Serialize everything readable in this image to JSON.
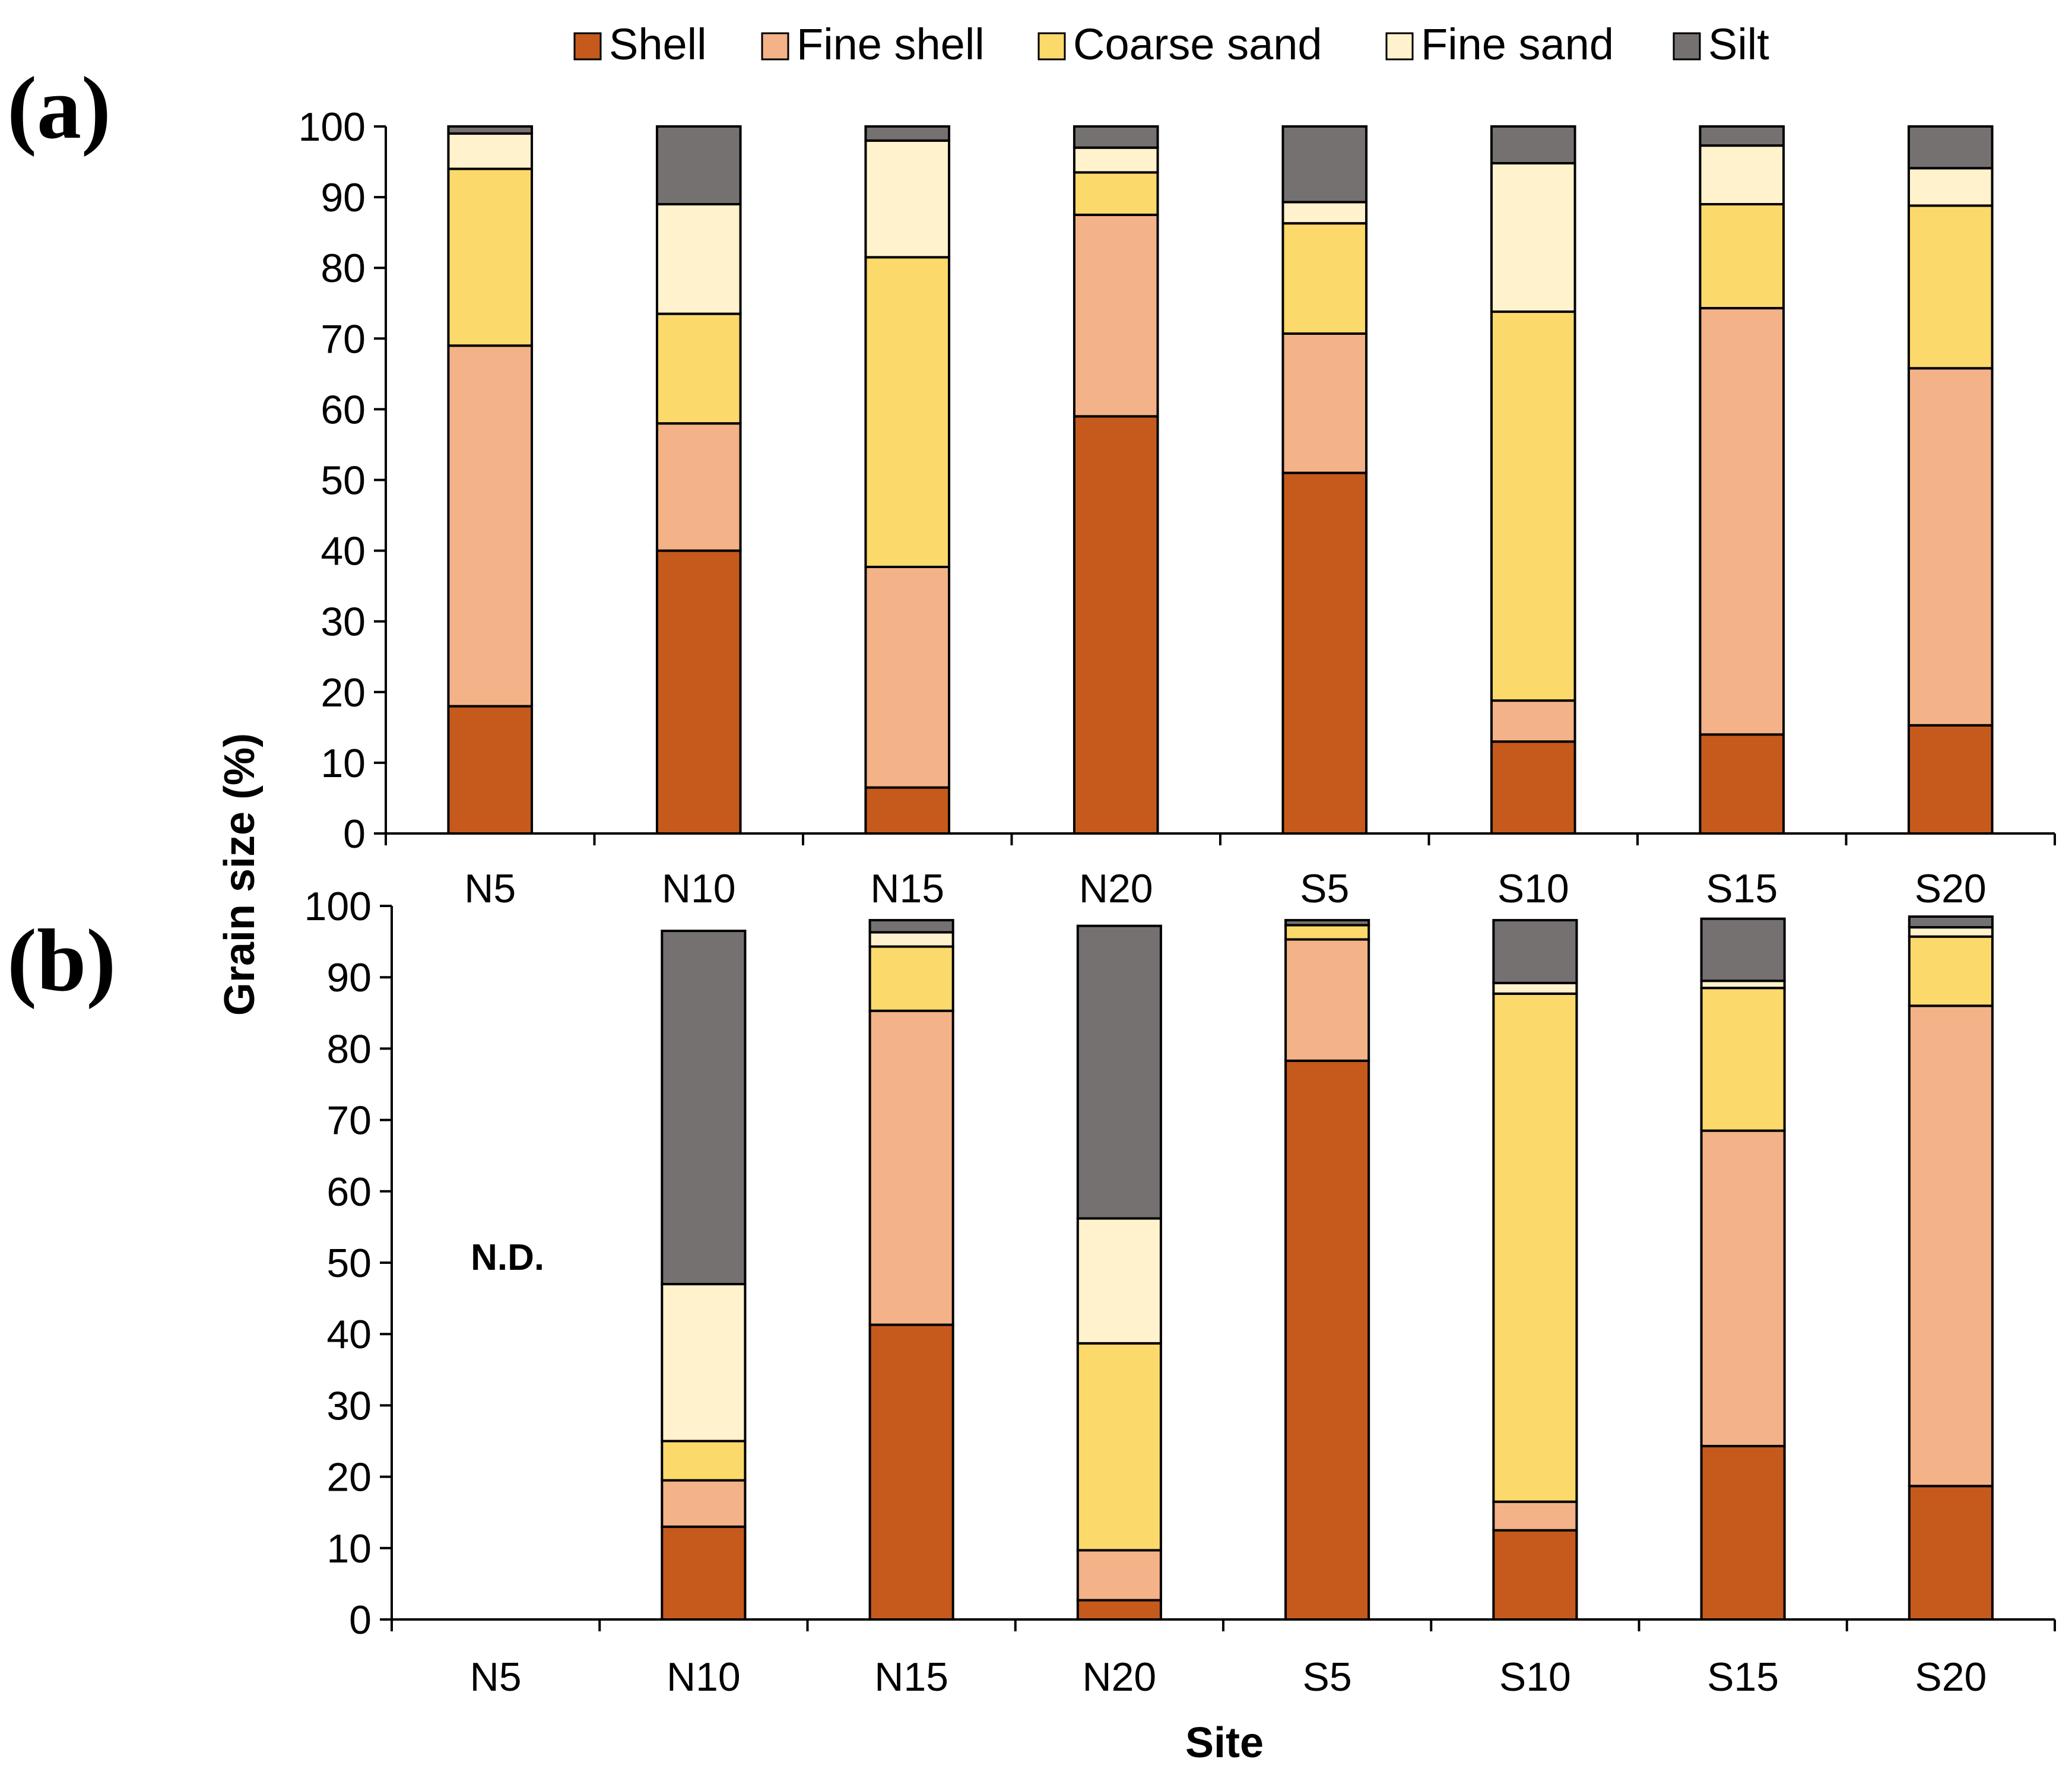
{
  "chart_data": {
    "type": "bar",
    "stacked": true,
    "legend": {
      "placement": "top-center",
      "entries": [
        {
          "name": "Shell",
          "color": "#C55A1C"
        },
        {
          "name": "Fine shell",
          "color": "#F3B287"
        },
        {
          "name": "Coarse sand",
          "color": "#FCD96B"
        },
        {
          "name": "Fine sand",
          "color": "#FFF2CC"
        },
        {
          "name": "Silt",
          "color": "#767171"
        }
      ]
    },
    "ylabel": "Grain size (%)",
    "xlabel": "Site",
    "ylim": [
      0,
      100
    ],
    "yticks": [
      "0",
      "10",
      "20",
      "30",
      "40",
      "50",
      "60",
      "70",
      "80",
      "90",
      "100"
    ],
    "categories": [
      "N5",
      "N10",
      "N15",
      "N20",
      "S5",
      "S10",
      "S15",
      "S20"
    ],
    "panels": [
      {
        "label": "(a)",
        "note": null,
        "series": [
          {
            "name": "Shell",
            "values": [
              18,
              40,
              6.5,
              59,
              51,
              13,
              14,
              15.3
            ]
          },
          {
            "name": "Fine shell",
            "values": [
              51,
              18,
              31.2,
              28.5,
              19.7,
              5.8,
              60.3,
              50.5
            ]
          },
          {
            "name": "Coarse sand",
            "values": [
              25,
              15.5,
              43.8,
              6,
              15.6,
              55,
              14.7,
              23
            ]
          },
          {
            "name": "Fine sand",
            "values": [
              5,
              15.5,
              16.5,
              3.5,
              3,
              21,
              8.3,
              5.3
            ]
          },
          {
            "name": "Silt",
            "values": [
              1,
              11,
              2,
              3,
              10.7,
              5.2,
              2.7,
              5.9
            ]
          }
        ]
      },
      {
        "label": "(b)",
        "note": {
          "text": "N.D.",
          "category": "N5"
        },
        "series": [
          {
            "name": "Shell",
            "values": [
              null,
              13,
              41.3,
              2.7,
              78.3,
              12.5,
              24.3,
              18.7
            ]
          },
          {
            "name": "Fine shell",
            "values": [
              null,
              6.5,
              44,
              7,
              17,
              4,
              44.2,
              67.3
            ]
          },
          {
            "name": "Coarse sand",
            "values": [
              null,
              5.5,
              9,
              29,
              2,
              71.2,
              20,
              9.7
            ]
          },
          {
            "name": "Fine sand",
            "values": [
              null,
              22,
              2,
              17.5,
              0,
              1.5,
              1,
              1.3
            ]
          },
          {
            "name": "Silt",
            "values": [
              null,
              49.5,
              1.7,
              41,
              0.7,
              8.8,
              8.7,
              1.5
            ]
          }
        ]
      }
    ]
  }
}
